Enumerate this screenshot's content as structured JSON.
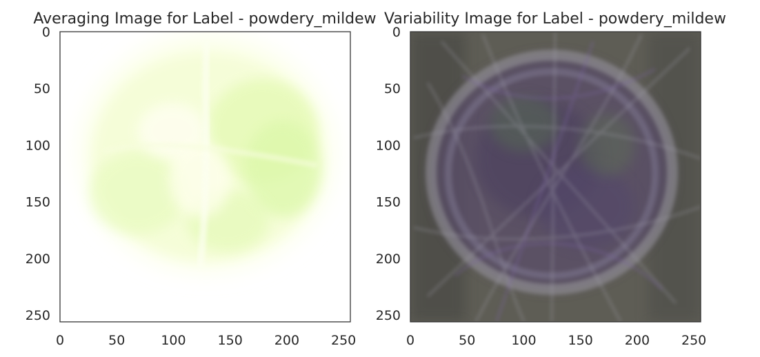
{
  "figure": {
    "background": "#ffffff",
    "spine_color": "#333333",
    "text_color": "#262626"
  },
  "chart_data": [
    {
      "type": "heatmap",
      "title": "Averaging Image for Label - powdery_mildew",
      "xlabel": "",
      "ylabel": "",
      "xlim": [
        0,
        256
      ],
      "ylim": [
        256,
        0
      ],
      "xticks": [
        0,
        50,
        100,
        150,
        200,
        250
      ],
      "yticks": [
        0,
        50,
        100,
        150,
        200,
        250
      ],
      "grid": false,
      "colors": {
        "background": "#ffffff",
        "leaf_light": "#fbffe6",
        "leaf_mid": "#eefcc8",
        "leaf_green": "#d6f7a6"
      }
    },
    {
      "type": "heatmap",
      "title": "Variability Image for Label - powdery_mildew",
      "xlabel": "",
      "ylabel": "",
      "xlim": [
        0,
        256
      ],
      "ylim": [
        256,
        0
      ],
      "xticks": [
        0,
        50,
        100,
        150,
        200,
        250
      ],
      "yticks": [
        0,
        50,
        100,
        150,
        200,
        250
      ],
      "grid": false,
      "colors": {
        "background": "#5e5d55",
        "dark": "#3f3e3a",
        "purple": "#5b4a72",
        "light": "#a7a6ad",
        "green": "#556a4e"
      }
    }
  ]
}
